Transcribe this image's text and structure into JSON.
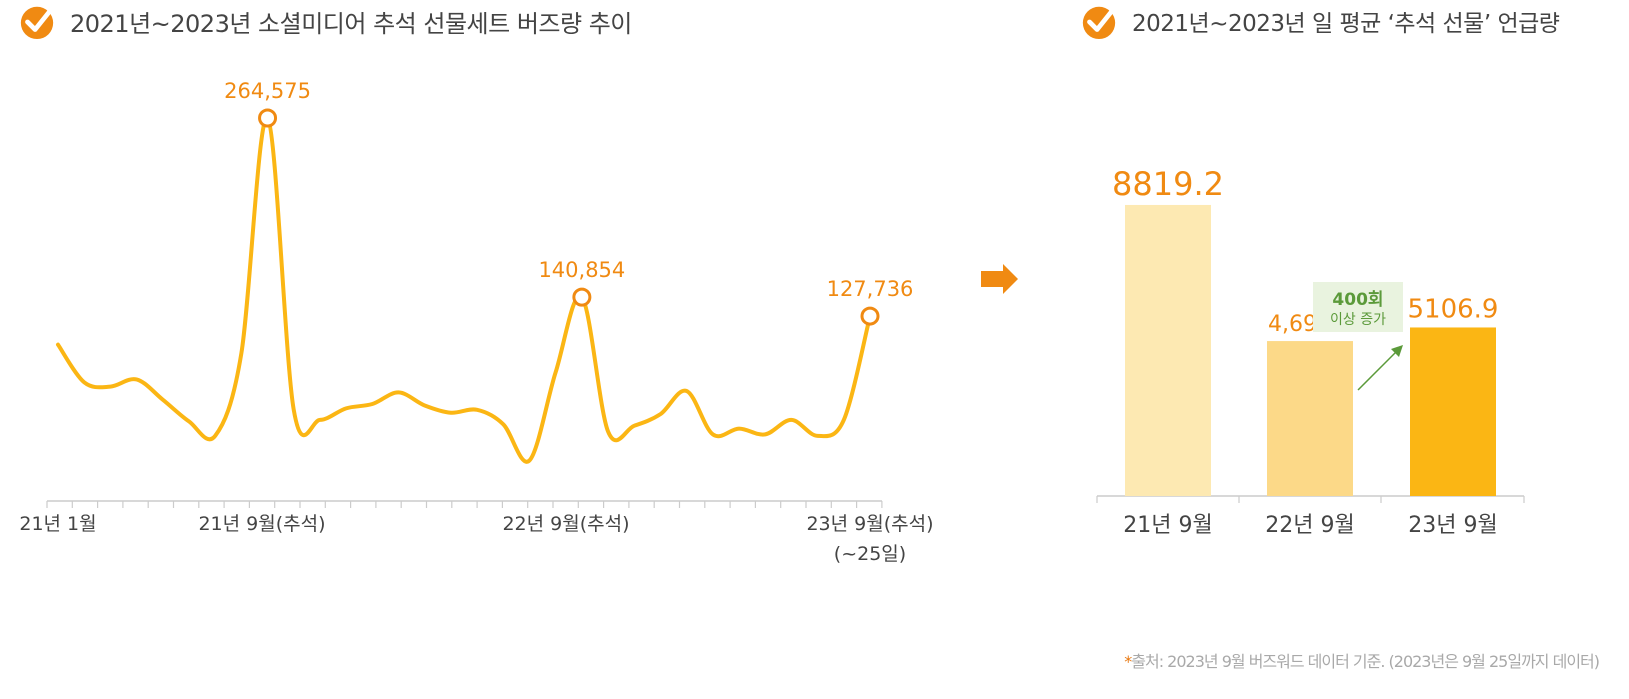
{
  "left_title": "2021년~2023년 소셜미디어 추석 선물세트 버즈량 추이",
  "right_title": "2021년~2023년 일 평균 ‘추석 선물’ 언급량",
  "source_star": "*",
  "source_text": "출처: 2023년 9월 버즈워드 데이터 기준. (2023년은 9월 25일까지 데이터)",
  "colors": {
    "accent_orange": "#f08a12",
    "line_yellow": "#fbb614",
    "bar_light": "#fde9b2",
    "bar_mid": "#fcd988",
    "bar_dark": "#fbb614",
    "green": "#5b9a3a",
    "green_bg": "#e9f3df",
    "axis": "#cccccc"
  },
  "icons": [
    "check-circle-icon",
    "right-arrow-icon"
  ],
  "chart_data": [
    {
      "type": "line",
      "title": "2021년~2023년 소셜미디어 추석 선물세트 버즈량 추이",
      "x_tick_labels": [
        "21년 1월",
        "21년 9월(추석)",
        "22년 9월(추석)",
        "23년 9월(추석)",
        "(~25일)"
      ],
      "series": [
        {
          "values": [
            108000,
            82000,
            79000,
            84000,
            70000,
            55000,
            45000,
            102000,
            264575,
            63000,
            56000,
            64000,
            67000,
            75000,
            66000,
            61000,
            63000,
            53000,
            28000,
            89000,
            140854,
            48000,
            52000,
            60000,
            76000,
            46000,
            50000,
            46000,
            56000,
            45000,
            56000,
            127736
          ]
        }
      ],
      "annotations": [
        {
          "label": "264,575",
          "value": 264575
        },
        {
          "label": "140,854",
          "value": 140854
        },
        {
          "label": "127,736",
          "value": 127736
        }
      ]
    },
    {
      "type": "bar",
      "title": "2021년~2023년 일 평균 ‘추석 선물’ 언급량",
      "categories": [
        "21년 9월",
        "22년 9월",
        "23년 9월"
      ],
      "values": [
        8819.2,
        4695.0,
        5106.9
      ],
      "value_labels": [
        "8819.2",
        "4,695.0",
        "5106.9"
      ],
      "ylim": [
        0,
        10000
      ],
      "callout": {
        "line1": "400회",
        "line2": "이상 증가"
      }
    }
  ]
}
